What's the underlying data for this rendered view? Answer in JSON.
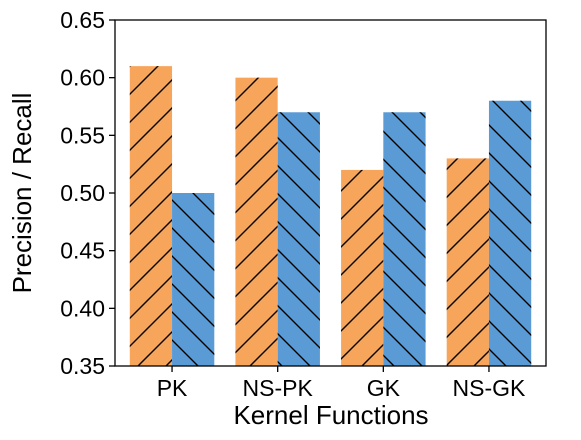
{
  "chart_data": {
    "type": "bar",
    "title": "",
    "xlabel": "Kernel Functions",
    "ylabel": "Precision / Recall",
    "categories": [
      "PK",
      "NS-PK",
      "GK",
      "NS-GK"
    ],
    "series": [
      {
        "values": [
          0.61,
          0.6,
          0.52,
          0.53
        ],
        "color": "#F8A55C",
        "hatch": "forward-diagonal"
      },
      {
        "values": [
          0.5,
          0.57,
          0.57,
          0.58
        ],
        "color": "#5B9BD5",
        "hatch": "back-diagonal"
      }
    ],
    "ylim": [
      0.35,
      0.65
    ],
    "yticks": [
      "0.35",
      "0.40",
      "0.45",
      "0.50",
      "0.55",
      "0.60",
      "0.65"
    ],
    "grid": false,
    "legend": "none"
  }
}
